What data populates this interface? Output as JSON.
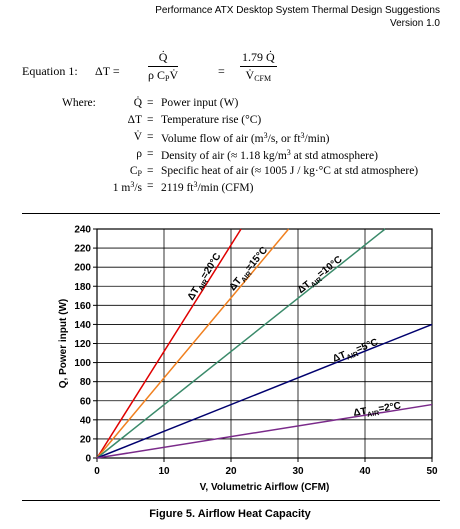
{
  "header": {
    "title": "Performance ATX Desktop System Thermal Design Suggestions",
    "version": "Version 1.0"
  },
  "equation": {
    "label": "Equation 1:",
    "lhs": "ΔT =",
    "frac1": {
      "num": "Q̇",
      "den": "ρ C",
      "den_sub": "P",
      "den_end": "V̇"
    },
    "eq": "=",
    "frac2": {
      "num": "1.79 Q̇",
      "den": "V̇",
      "den_sub": "CFM"
    }
  },
  "where": {
    "label": "Where:",
    "equals": "=",
    "rows": [
      {
        "symbol": [
          "Q̇"
        ],
        "desc": [
          "Power input (W)"
        ]
      },
      {
        "symbol": [
          "ΔT"
        ],
        "desc": [
          "Temperature rise (°C)"
        ]
      },
      {
        "symbol": [
          "V̇"
        ],
        "desc": [
          "Volume flow of air (m",
          "3",
          "/s, or ft",
          "3",
          "/min)"
        ]
      },
      {
        "symbol": [
          "ρ"
        ],
        "desc": [
          "Density of air (≈ 1.18 kg/m",
          "3",
          " at std atmosphere)"
        ]
      },
      {
        "symbol": [
          "C",
          "P"
        ],
        "desc": [
          "Specific heat of air (≈ 1005 J / kg·°C at std atmosphere)"
        ]
      }
    ],
    "conversion": {
      "lhs": [
        "1 m",
        "3",
        "/s"
      ],
      "rhs": [
        "2119 ft",
        "3",
        "/min (CFM)"
      ]
    }
  },
  "chart_data": {
    "type": "line",
    "xlabel": "V, Volumetric Airflow (CFM)",
    "ylabel": "Q, Power input (W)",
    "xlim": [
      0,
      50
    ],
    "ylim": [
      0,
      240
    ],
    "xticks": [
      0,
      10,
      20,
      30,
      40,
      50
    ],
    "yticks": [
      0,
      20,
      40,
      60,
      80,
      100,
      120,
      140,
      160,
      180,
      200,
      220,
      240
    ],
    "grid": true,
    "series": [
      {
        "label": {
          "main": "ΔT",
          "sub": "AIR",
          "rest": "=20°C"
        },
        "color": "#e00000",
        "x": [
          0,
          21.5
        ],
        "values": [
          0,
          240
        ]
      },
      {
        "label": {
          "main": "ΔT",
          "sub": "AIR",
          "rest": "=15°C"
        },
        "color": "#f08020",
        "x": [
          0,
          28.6
        ],
        "values": [
          0,
          240
        ]
      },
      {
        "label": {
          "main": "ΔT",
          "sub": "AIR",
          "rest": "=10°C"
        },
        "color": "#3a8a6a",
        "x": [
          0,
          43
        ],
        "values": [
          0,
          240
        ]
      },
      {
        "label": {
          "main": "ΔT",
          "sub": "AIR",
          "rest": "=5°C"
        },
        "color": "#00006e",
        "x": [
          0,
          50
        ],
        "values": [
          0,
          140
        ]
      },
      {
        "label": {
          "main": "ΔT",
          "sub": "AIR",
          "rest": "=2°C"
        },
        "color": "#7a2a8a",
        "x": [
          0,
          50
        ],
        "values": [
          0,
          56
        ]
      }
    ]
  },
  "caption": "Figure 5.  Airflow Heat Capacity"
}
